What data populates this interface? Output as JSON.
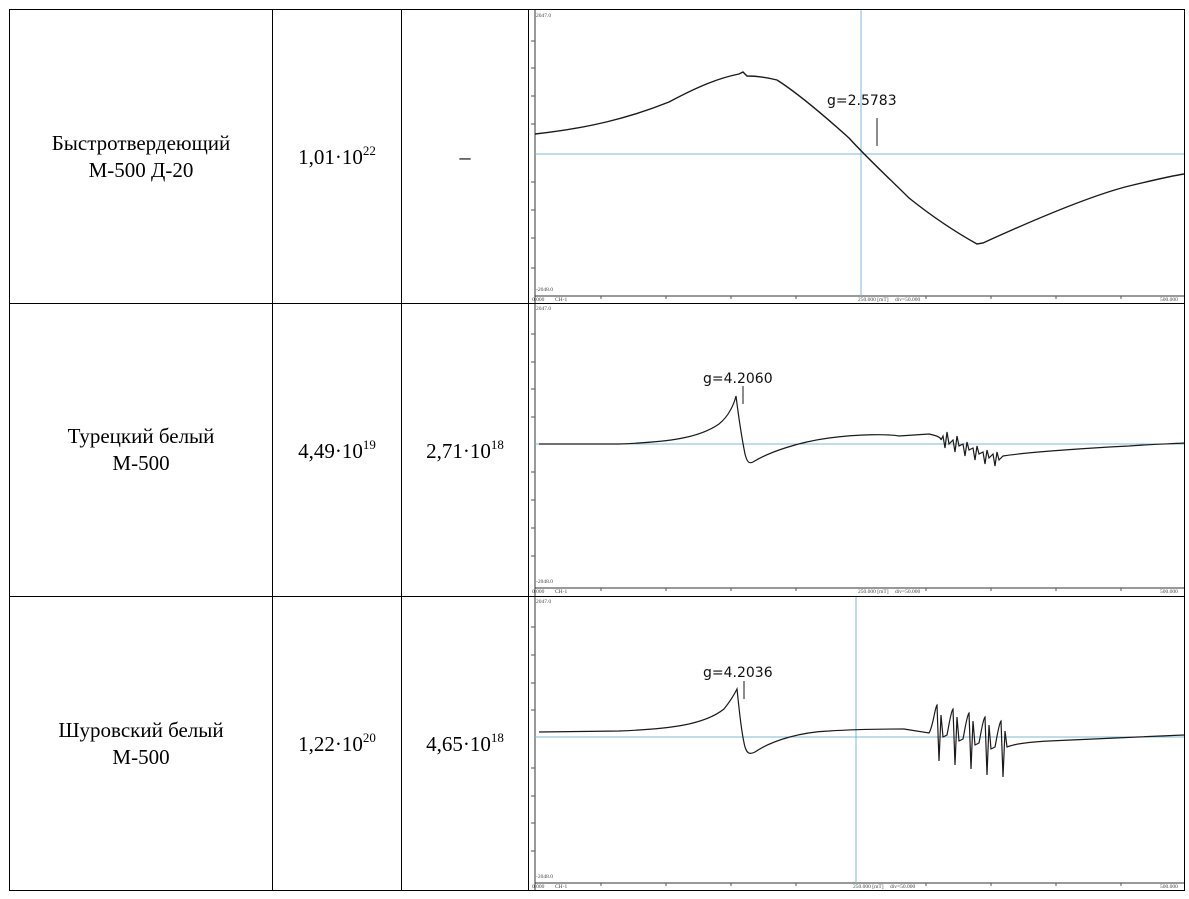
{
  "rows": [
    {
      "name_line1": "Быстротвердеющий",
      "name_line2": "М-500 Д-20",
      "val1_mant": "1,01·10",
      "val1_exp": "22",
      "val2_mant": "",
      "val2_exp": "",
      "val2_dash": "–",
      "spectrum": {
        "g_label": "g=2.5783",
        "show_vline": true
      }
    },
    {
      "name_line1": "Турецкий белый",
      "name_line2": "М-500",
      "val1_mant": "4,49·10",
      "val1_exp": "19",
      "val2_mant": "2,71·10",
      "val2_exp": "18",
      "val2_dash": "",
      "spectrum": {
        "g_label": "g=4.2060",
        "show_vline": false
      }
    },
    {
      "name_line1": "Шуровский белый",
      "name_line2": "М-500",
      "val1_mant": "1,22·10",
      "val1_exp": "20",
      "val2_mant": "4,65·10",
      "val2_exp": "18",
      "val2_dash": "",
      "spectrum": {
        "g_label": "g=4.2036",
        "show_vline": true
      }
    }
  ],
  "axis": {
    "top_value": "2047.0",
    "bottom_value": "-2048.0",
    "x_start": "0.000",
    "channel": "CH-1",
    "x_mid": "250.000 [mT]",
    "div": "div=50.000",
    "x_end": "500.000"
  },
  "colors": {
    "trace": "#1a1a1a",
    "crosshair": "#7fb8d4",
    "frame": "#333333"
  }
}
